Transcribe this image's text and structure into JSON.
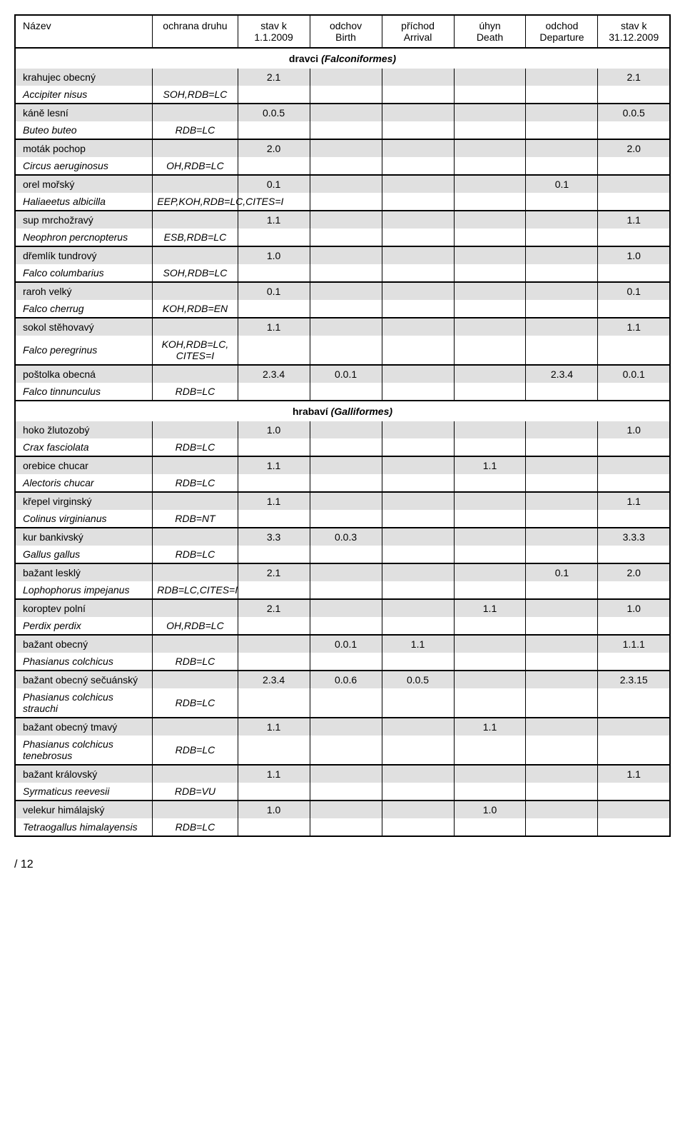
{
  "columns": [
    {
      "l1": "Název",
      "l2": ""
    },
    {
      "l1": "ochrana druhu",
      "l2": ""
    },
    {
      "l1": "stav k",
      "l2": "1.1.2009"
    },
    {
      "l1": "odchov",
      "l2": "Birth"
    },
    {
      "l1": "příchod",
      "l2": "Arrival"
    },
    {
      "l1": "úhyn",
      "l2": "Death"
    },
    {
      "l1": "odchod",
      "l2": "Departure"
    },
    {
      "l1": "stav k",
      "l2": "31.12.2009"
    }
  ],
  "page_number": "/ 12",
  "colors": {
    "shaded_bg": "#e0e0e0",
    "border": "#000000",
    "text": "#000000",
    "bg": "#ffffff"
  },
  "body": [
    {
      "type": "section",
      "plain": "dravci ",
      "italic": "(Falconiformes)"
    },
    {
      "type": "pair",
      "heavy": false,
      "r1": {
        "name": "krahujec obecný",
        "ochrana": "",
        "c": [
          "2.1",
          "",
          "",
          "",
          "",
          "2.1"
        ]
      },
      "r2": {
        "name": "Accipiter nisus",
        "ochrana": "SOH,RDB=LC",
        "c": [
          "",
          "",
          "",
          "",
          "",
          ""
        ]
      }
    },
    {
      "type": "pair",
      "heavy": true,
      "r1": {
        "name": "káně lesní",
        "ochrana": "",
        "c": [
          "0.0.5",
          "",
          "",
          "",
          "",
          "0.0.5"
        ]
      },
      "r2": {
        "name": "Buteo buteo",
        "ochrana": "RDB=LC",
        "c": [
          "",
          "",
          "",
          "",
          "",
          ""
        ]
      }
    },
    {
      "type": "pair",
      "heavy": true,
      "r1": {
        "name": "moták pochop",
        "ochrana": "",
        "c": [
          "2.0",
          "",
          "",
          "",
          "",
          "2.0"
        ]
      },
      "r2": {
        "name": "Circus aeruginosus",
        "ochrana": "OH,RDB=LC",
        "c": [
          "",
          "",
          "",
          "",
          "",
          ""
        ]
      }
    },
    {
      "type": "pair",
      "heavy": true,
      "r1": {
        "name": "orel mořský",
        "ochrana": "",
        "c": [
          "0.1",
          "",
          "",
          "",
          "0.1",
          ""
        ]
      },
      "r2": {
        "name": "Haliaeetus albicilla",
        "ochrana": "EEP,KOH,RDB=LC,CITES=I",
        "c": [
          "",
          "",
          "",
          "",
          "",
          ""
        ]
      }
    },
    {
      "type": "pair",
      "heavy": true,
      "r1": {
        "name": "sup mrchožravý",
        "ochrana": "",
        "c": [
          "1.1",
          "",
          "",
          "",
          "",
          "1.1"
        ]
      },
      "r2": {
        "name": "Neophron percnopterus",
        "ochrana": "ESB,RDB=LC",
        "c": [
          "",
          "",
          "",
          "",
          "",
          ""
        ]
      }
    },
    {
      "type": "pair",
      "heavy": true,
      "r1": {
        "name": "dřemlík tundrový",
        "ochrana": "",
        "c": [
          "1.0",
          "",
          "",
          "",
          "",
          "1.0"
        ]
      },
      "r2": {
        "name": "Falco columbarius",
        "ochrana": "SOH,RDB=LC",
        "c": [
          "",
          "",
          "",
          "",
          "",
          ""
        ]
      }
    },
    {
      "type": "pair",
      "heavy": true,
      "r1": {
        "name": "raroh velký",
        "ochrana": "",
        "c": [
          "0.1",
          "",
          "",
          "",
          "",
          "0.1"
        ]
      },
      "r2": {
        "name": "Falco cherrug",
        "ochrana": "KOH,RDB=EN",
        "c": [
          "",
          "",
          "",
          "",
          "",
          ""
        ]
      }
    },
    {
      "type": "pair",
      "heavy": true,
      "r1": {
        "name": "sokol stěhovavý",
        "ochrana": "",
        "c": [
          "1.1",
          "",
          "",
          "",
          "",
          "1.1"
        ]
      },
      "r2": {
        "name": "Falco peregrinus",
        "ochrana": "KOH,RDB=LC, CITES=I",
        "c": [
          "",
          "",
          "",
          "",
          "",
          ""
        ]
      }
    },
    {
      "type": "pair",
      "heavy": true,
      "r1": {
        "name": "poštolka obecná",
        "ochrana": "",
        "c": [
          "2.3.4",
          "0.0.1",
          "",
          "",
          "2.3.4",
          "0.0.1"
        ]
      },
      "r2": {
        "name": "Falco tinnunculus",
        "ochrana": "RDB=LC",
        "c": [
          "",
          "",
          "",
          "",
          "",
          ""
        ]
      }
    },
    {
      "type": "section",
      "plain": "hrabaví ",
      "italic": "(Galliformes)"
    },
    {
      "type": "pair",
      "heavy": false,
      "r1": {
        "name": "hoko žlutozobý",
        "ochrana": "",
        "c": [
          "1.0",
          "",
          "",
          "",
          "",
          "1.0"
        ]
      },
      "r2": {
        "name": "Crax fasciolata",
        "ochrana": "RDB=LC",
        "c": [
          "",
          "",
          "",
          "",
          "",
          ""
        ]
      }
    },
    {
      "type": "pair",
      "heavy": true,
      "r1": {
        "name": "orebice chucar",
        "ochrana": "",
        "c": [
          "1.1",
          "",
          "",
          "1.1",
          "",
          ""
        ]
      },
      "r2": {
        "name": "Alectoris chucar",
        "ochrana": "RDB=LC",
        "c": [
          "",
          "",
          "",
          "",
          "",
          ""
        ]
      }
    },
    {
      "type": "pair",
      "heavy": true,
      "r1": {
        "name": "křepel virginský",
        "ochrana": "",
        "c": [
          "1.1",
          "",
          "",
          "",
          "",
          "1.1"
        ]
      },
      "r2": {
        "name": "Colinus virginianus",
        "ochrana": "RDB=NT",
        "c": [
          "",
          "",
          "",
          "",
          "",
          ""
        ]
      }
    },
    {
      "type": "pair",
      "heavy": true,
      "r1": {
        "name": "kur bankivský",
        "ochrana": "",
        "c": [
          "3.3",
          "0.0.3",
          "",
          "",
          "",
          "3.3.3"
        ]
      },
      "r2": {
        "name": "Gallus gallus",
        "ochrana": "RDB=LC",
        "c": [
          "",
          "",
          "",
          "",
          "",
          ""
        ]
      }
    },
    {
      "type": "pair",
      "heavy": true,
      "r1": {
        "name": "bažant lesklý",
        "ochrana": "",
        "c": [
          "2.1",
          "",
          "",
          "",
          "0.1",
          "2.0"
        ]
      },
      "r2": {
        "name": "Lophophorus impejanus",
        "ochrana": "RDB=LC,CITES=I",
        "c": [
          "",
          "",
          "",
          "",
          "",
          ""
        ]
      }
    },
    {
      "type": "pair",
      "heavy": true,
      "r1": {
        "name": "koroptev polní",
        "ochrana": "",
        "c": [
          "2.1",
          "",
          "",
          "1.1",
          "",
          "1.0"
        ]
      },
      "r2": {
        "name": "Perdix perdix",
        "ochrana": "OH,RDB=LC",
        "c": [
          "",
          "",
          "",
          "",
          "",
          ""
        ]
      }
    },
    {
      "type": "pair",
      "heavy": true,
      "r1": {
        "name": "bažant obecný",
        "ochrana": "",
        "c": [
          "",
          "0.0.1",
          "1.1",
          "",
          "",
          "1.1.1"
        ]
      },
      "r2": {
        "name": "Phasianus colchicus",
        "ochrana": "RDB=LC",
        "c": [
          "",
          "",
          "",
          "",
          "",
          ""
        ]
      }
    },
    {
      "type": "pair",
      "heavy": true,
      "r1": {
        "name": "bažant obecný sečuánský",
        "ochrana": "",
        "c": [
          "2.3.4",
          "0.0.6",
          "0.0.5",
          "",
          "",
          "2.3.15"
        ]
      },
      "r2": {
        "name": "Phasianus colchicus strauchi",
        "ochrana": "RDB=LC",
        "c": [
          "",
          "",
          "",
          "",
          "",
          ""
        ]
      }
    },
    {
      "type": "pair",
      "heavy": true,
      "r1": {
        "name": "bažant obecný tmavý",
        "ochrana": "",
        "c": [
          "1.1",
          "",
          "",
          "1.1",
          "",
          ""
        ]
      },
      "r2": {
        "name": "Phasianus colchicus tenebrosus",
        "ochrana": "RDB=LC",
        "c": [
          "",
          "",
          "",
          "",
          "",
          ""
        ]
      }
    },
    {
      "type": "pair",
      "heavy": true,
      "r1": {
        "name": "bažant královský",
        "ochrana": "",
        "c": [
          "1.1",
          "",
          "",
          "",
          "",
          "1.1"
        ]
      },
      "r2": {
        "name": "Syrmaticus reevesii",
        "ochrana": "RDB=VU",
        "c": [
          "",
          "",
          "",
          "",
          "",
          ""
        ]
      }
    },
    {
      "type": "pair",
      "heavy": true,
      "r1": {
        "name": "velekur himálajský",
        "ochrana": "",
        "c": [
          "1.0",
          "",
          "",
          "1.0",
          "",
          ""
        ]
      },
      "r2": {
        "name": "Tetraogallus himalayensis",
        "ochrana": "RDB=LC",
        "c": [
          "",
          "",
          "",
          "",
          "",
          ""
        ]
      }
    }
  ]
}
